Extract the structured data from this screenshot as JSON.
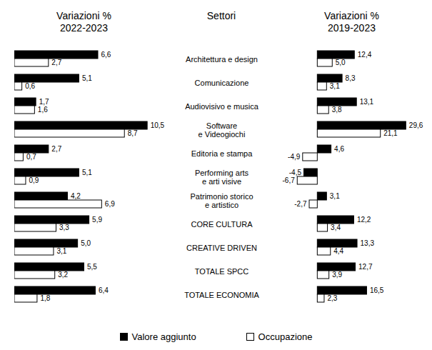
{
  "chart_data": [
    {
      "type": "bar",
      "orientation": "horizontal",
      "title": "Variazioni %\n2022-2023",
      "ylabel": "Settori",
      "categories": [
        "Architettura e design",
        "Comunicazione",
        "Audiovisivo e musica",
        "Software\ne Videogiochi",
        "Editoria e stampa",
        "Performing arts\ne arti visive",
        "Patrimonio storico\ne artistico",
        "CORE CULTURA",
        "CREATIVE DRIVEN",
        "TOTALE SPCC",
        "TOTALE ECONOMIA"
      ],
      "series": [
        {
          "name": "Valore aggiunto",
          "color": "#000000",
          "values": [
            6.6,
            5.1,
            1.7,
            10.5,
            2.7,
            5.1,
            4.2,
            5.9,
            5.0,
            5.5,
            6.4
          ],
          "value_labels": [
            "6,6",
            "5,1",
            "1,7",
            "10,5",
            "2,7",
            "5,1",
            "4,2",
            "5,9",
            "5,0",
            "5,5",
            "6,4"
          ]
        },
        {
          "name": "Occupazione",
          "color": "#ffffff",
          "values": [
            2.7,
            0.6,
            1.6,
            8.7,
            0.7,
            0.9,
            6.9,
            3.3,
            3.1,
            3.2,
            1.8
          ],
          "value_labels": [
            "2,7",
            "0,6",
            "1,6",
            "8,7",
            "0,7",
            "0,9",
            "6,9",
            "3,3",
            "3,1",
            "3,2",
            "1,8"
          ]
        }
      ],
      "xlim": [
        0,
        11
      ],
      "data_labels": true,
      "tick_labels": false,
      "legend": "bottom"
    },
    {
      "type": "bar",
      "orientation": "horizontal",
      "title": "Variazioni %\n2019-2023",
      "categories": [
        "Architettura e design",
        "Comunicazione",
        "Audiovisivo e musica",
        "Software\ne Videogiochi",
        "Editoria e stampa",
        "Performing arts\ne arti visive",
        "Patrimonio storico\ne artistico",
        "CORE CULTURA",
        "CREATIVE DRIVEN",
        "TOTALE SPCC",
        "TOTALE ECONOMIA"
      ],
      "series": [
        {
          "name": "Valore aggiunto",
          "color": "#000000",
          "values": [
            12.4,
            8.3,
            13.1,
            29.6,
            4.6,
            -4.5,
            3.1,
            12.2,
            13.3,
            12.7,
            16.5
          ],
          "value_labels": [
            "12,4",
            "8,3",
            "13,1",
            "29,6",
            "4,6",
            "-4,5",
            "3,1",
            "12,2",
            "13,3",
            "12,7",
            "16,5"
          ]
        },
        {
          "name": "Occupazione",
          "color": "#ffffff",
          "values": [
            5.0,
            3.1,
            3.8,
            21.1,
            -4.9,
            -6.7,
            -2.7,
            3.4,
            4.4,
            3.9,
            2.3
          ],
          "value_labels": [
            "5,0",
            "3,1",
            "3,8",
            "21,1",
            "-4,9",
            "-6,7",
            "-2,7",
            "3,4",
            "4,4",
            "3,9",
            "2,3"
          ]
        }
      ],
      "xlim": [
        -7,
        30
      ],
      "data_labels": true,
      "tick_labels": false
    }
  ]
}
